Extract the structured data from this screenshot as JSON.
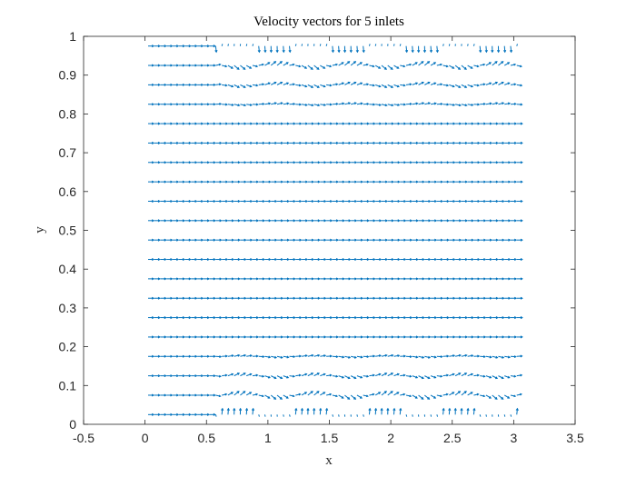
{
  "chart_data": {
    "type": "quiver",
    "title": "Velocity vectors for 5 inlets",
    "xlabel": "x",
    "ylabel": "y",
    "xlim": [
      -0.5,
      3.5
    ],
    "ylim": [
      0,
      1
    ],
    "xticks": [
      "-0.5",
      "0",
      "0.5",
      "1",
      "1.5",
      "2",
      "2.5",
      "3",
      "3.5"
    ],
    "yticks": [
      "0",
      "0.1",
      "0.2",
      "0.3",
      "0.4",
      "0.5",
      "0.6",
      "0.7",
      "0.8",
      "0.9",
      "1"
    ],
    "grid": false,
    "box": true,
    "arrow_color": "#0072BD",
    "inlets": 5,
    "x_range": [
      0.025,
      3.025
    ],
    "x_step": 0.05,
    "rows_y": [
      0.025,
      0.075,
      0.125,
      0.175,
      0.225,
      0.275,
      0.325,
      0.375,
      0.425,
      0.475,
      0.525,
      0.575,
      0.625,
      0.675,
      0.725,
      0.775,
      0.825,
      0.875,
      0.925,
      0.975
    ],
    "arrow_length_x": 0.045
  }
}
